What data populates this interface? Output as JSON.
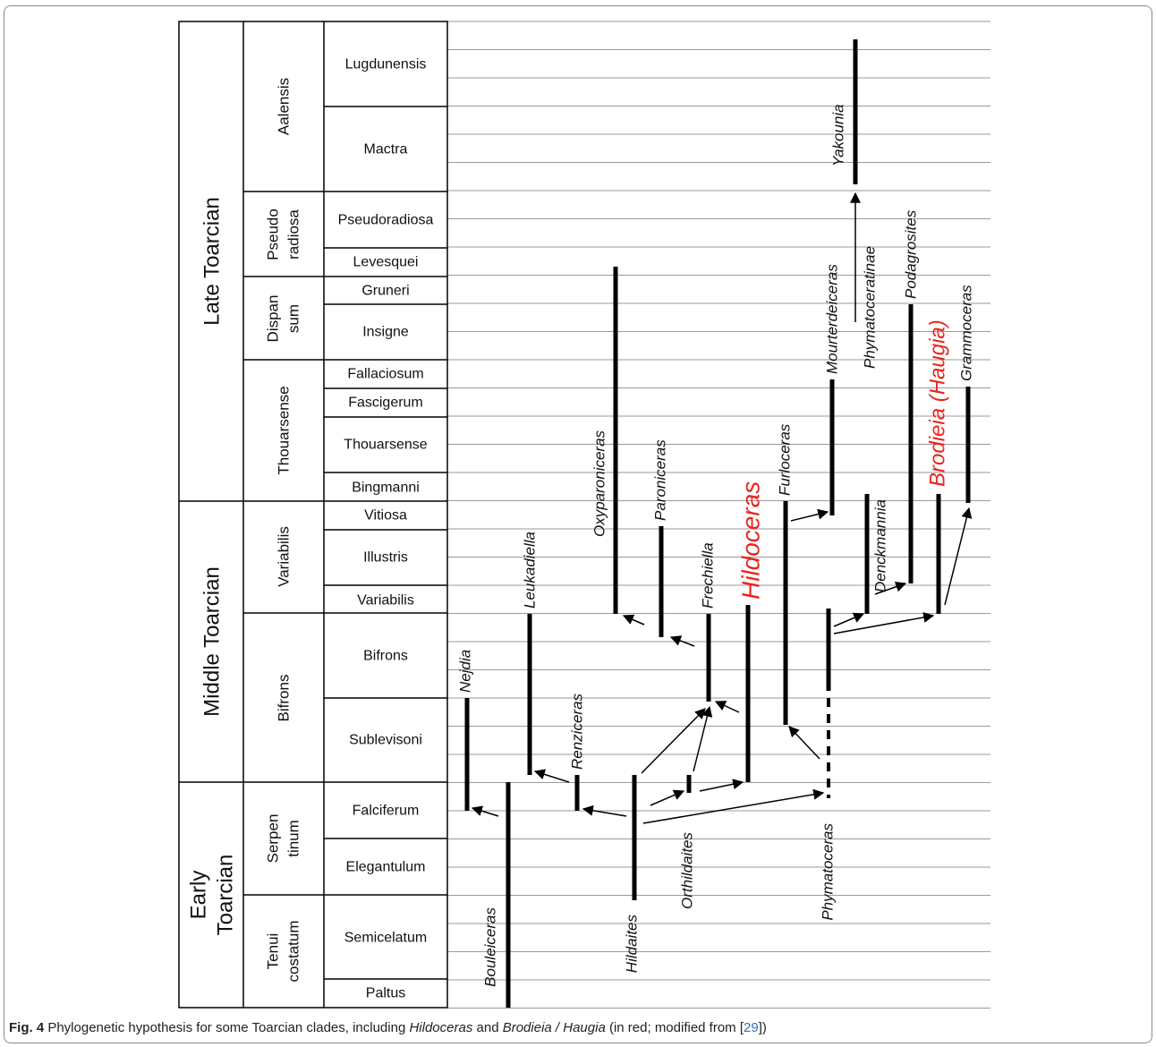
{
  "stages": [
    "Late Toarcian",
    "Middle Toarcian",
    "Early",
    "Toarcian"
  ],
  "zones": {
    "aalensis": "Aalensis",
    "pseudoradiosa": [
      "Pseudo",
      "radiosa"
    ],
    "dispansum": [
      "Dispan",
      "sum"
    ],
    "thouarsense": "Thouarsense",
    "variabilis": "Variabilis",
    "bifrons": "Bifrons",
    "serpentinum": [
      "Serpen",
      "tinum"
    ],
    "tenuicostatum": [
      "Tenui",
      "costatum"
    ]
  },
  "subzones": {
    "lugdunensis": "Lugdunensis",
    "mactra": "Mactra",
    "pseudoradiosa": "Pseudoradiosa",
    "levesquei": "Levesquei",
    "gruneri": "Gruneri",
    "insigne": "Insigne",
    "fallaciosum": "Fallaciosum",
    "fascigerum": "Fascigerum",
    "thouarsense": "Thouarsense",
    "bingmanni": "Bingmanni",
    "vitiosa": "Vitiosa",
    "illustris": "Illustris",
    "variabilis": "Variabilis",
    "bifrons": "Bifrons",
    "sublevisoni": "Sublevisoni",
    "falciferum": "Falciferum",
    "elegantulum": "Elegantulum",
    "semicelatum": "Semicelatum",
    "paltus": "Paltus"
  },
  "taxa": {
    "nejdia": "Nejdia",
    "leukadiella": "Leukadiella",
    "renziceras": "Renziceras",
    "oxyparoniceras": "Oxyparoniceras",
    "paroniceras": "Paroniceras",
    "frechiella": "Frechiella",
    "hildoceras": "Hildoceras",
    "furloceras": "Furloceras",
    "mourterdeiceras": "Mourterdeiceras",
    "denckmannia": "Denckmannia",
    "phymatoceratinae": "Phymatoceratinae",
    "podagrosites": "Podagrosites",
    "brodieia_haugia": "Brodieia (Haugia)",
    "grammoceras": "Grammoceras",
    "yakounia": "Yakounia",
    "bouleiceras": "Bouleiceras",
    "hildaites": "Hildaites",
    "orthildaites": "Orthildaites",
    "phymatoceras": "Phymatoceras"
  },
  "caption": {
    "label": "Fig. 4",
    "text1": " Phylogenetic hypothesis for some Toarcian clades, including ",
    "genus1": "Hildoceras",
    "text2": " and ",
    "genus2": "Brodieia / Haugia",
    "text3": " (in red; modified from [",
    "ref": "29",
    "text4": "])"
  },
  "colors": {
    "highlight": "#e8251f",
    "line": "#000000",
    "grid": "#9a9a9a",
    "ref_link": "#3a6fb5"
  }
}
